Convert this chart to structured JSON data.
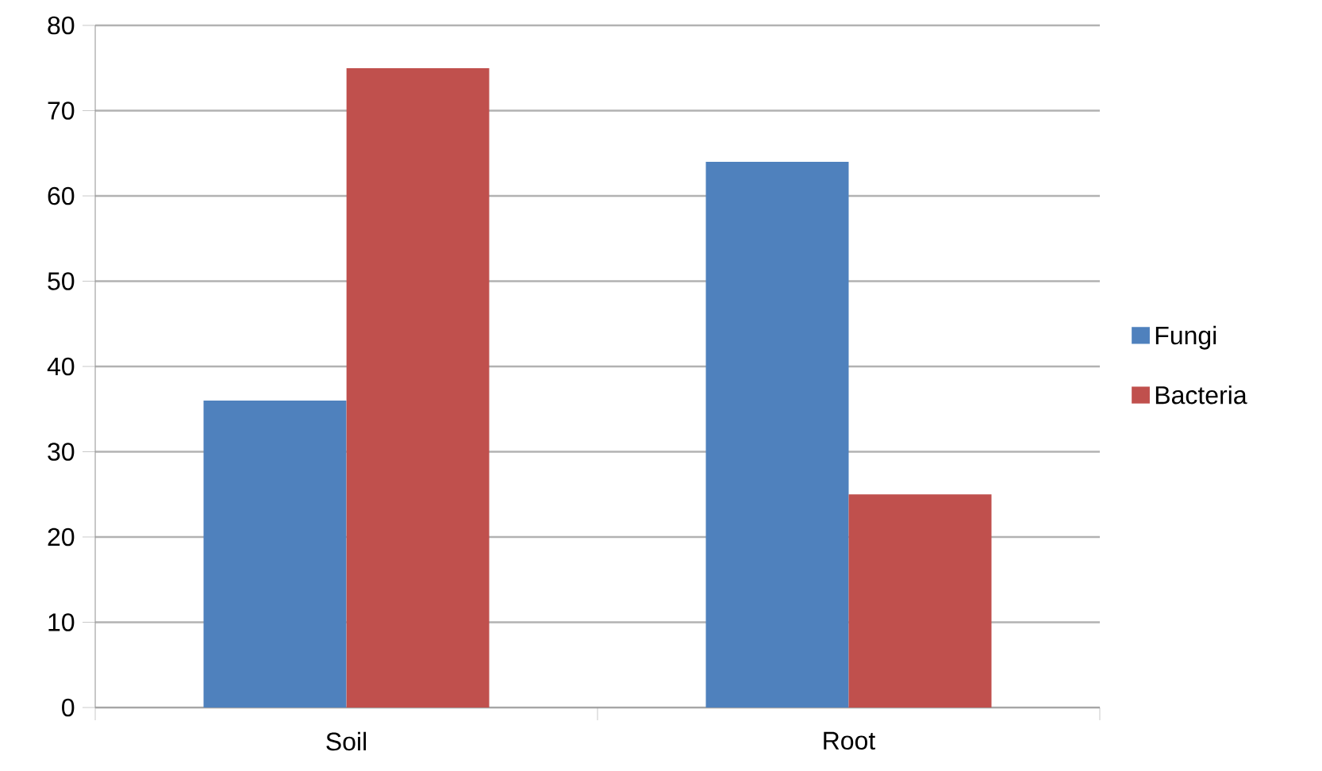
{
  "chart_data": {
    "type": "bar",
    "categories": [
      "Soil",
      "Root"
    ],
    "series": [
      {
        "name": "Fungi",
        "color": "#4f81bd",
        "values": [
          36,
          64
        ]
      },
      {
        "name": "Bacteria",
        "color": "#c0504d",
        "values": [
          75,
          25
        ]
      }
    ],
    "ylim": [
      0,
      80
    ],
    "yticks": [
      0,
      10,
      20,
      30,
      40,
      50,
      60,
      70,
      80
    ],
    "grid": "y",
    "legend": "right"
  }
}
